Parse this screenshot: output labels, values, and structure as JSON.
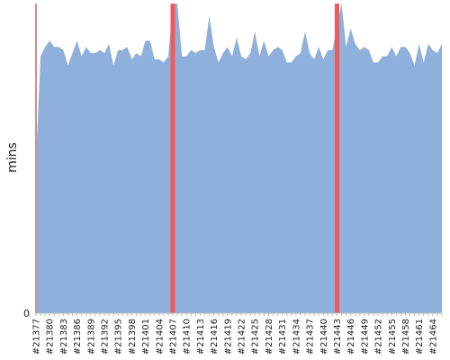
{
  "chart_data": {
    "type": "area",
    "ylabel": "mins",
    "xlabel": "",
    "title": "",
    "x_tick_labels": [
      "#21377",
      "#21380",
      "#21383",
      "#21386",
      "#21389",
      "#21392",
      "#21395",
      "#21398",
      "#21401",
      "#21404",
      "#21407",
      "#21410",
      "#21413",
      "#21416",
      "#21419",
      "#21422",
      "#21425",
      "#21428",
      "#21431",
      "#21434",
      "#21437",
      "#21440",
      "#21443",
      "#21446",
      "#21449",
      "#21452",
      "#21455",
      "#21458",
      "#21461",
      "#21464"
    ],
    "x_range": [
      21377,
      21466
    ],
    "y_tick_labels": [
      "0"
    ],
    "ylim": [
      0,
      100
    ],
    "grid": false,
    "colors": {
      "area_fill": "#8fb0da",
      "failure_marker": "#f25a5a",
      "axis": "#bbbbbb"
    },
    "series": [
      {
        "x": [
          21377,
          21378,
          21379,
          21380,
          21381,
          21382,
          21383,
          21384,
          21385,
          21386,
          21387,
          21388,
          21389,
          21390,
          21391,
          21392,
          21393,
          21394,
          21395,
          21396,
          21397,
          21398,
          21399,
          21400,
          21401,
          21402,
          21403,
          21404,
          21405,
          21406,
          21407,
          21408,
          21409,
          21410,
          21411,
          21412,
          21413,
          21414,
          21415,
          21416,
          21417,
          21418,
          21419,
          21420,
          21421,
          21422,
          21423,
          21424,
          21425,
          21426,
          21427,
          21428,
          21429,
          21430,
          21431,
          21432,
          21433,
          21434,
          21435,
          21436,
          21437,
          21438,
          21439,
          21440,
          21441,
          21442,
          21443,
          21444,
          21445,
          21446,
          21447,
          21448,
          21449,
          21450,
          21451,
          21452,
          21453,
          21454,
          21455,
          21456,
          21457,
          21458,
          21459,
          21460,
          21461,
          21462,
          21463,
          21464,
          21465,
          21466
        ],
        "values": [
          49,
          83,
          86,
          88,
          86,
          86,
          85,
          80,
          84,
          88,
          83,
          86,
          84,
          84,
          85,
          84,
          87,
          80,
          85,
          85,
          86,
          82,
          84,
          83,
          88,
          88,
          82,
          82,
          81,
          83,
          100,
          100,
          83,
          83,
          85,
          84,
          85,
          85,
          96,
          86,
          81,
          84,
          86,
          83,
          89,
          83,
          82,
          84,
          91,
          83,
          88,
          83,
          85,
          86,
          85,
          81,
          81,
          83,
          84,
          91,
          84,
          82,
          86,
          82,
          85,
          85,
          93,
          100,
          86,
          92,
          87,
          85,
          86,
          85,
          81,
          81,
          83,
          83,
          86,
          83,
          86,
          86,
          84,
          80,
          87,
          81,
          87,
          85,
          84,
          87
        ]
      }
    ],
    "failed_builds": [
      21377,
      21407,
      21443
    ]
  }
}
